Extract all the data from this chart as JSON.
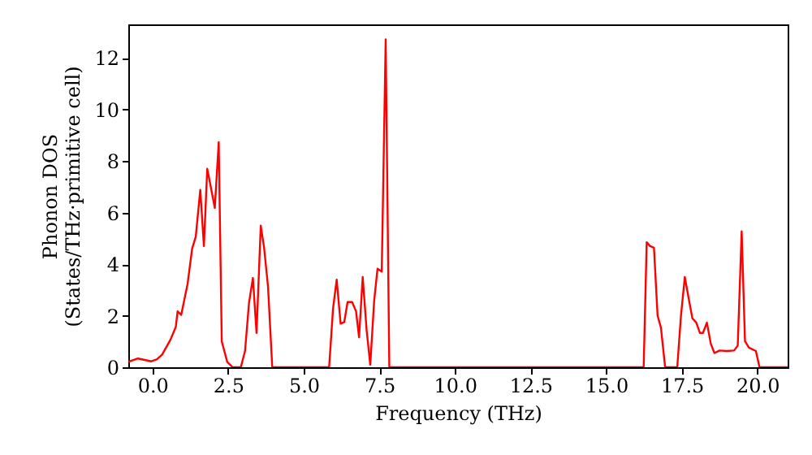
{
  "chart_data": {
    "type": "line",
    "xlabel": "Frequency (THz)",
    "ylabel": "Phonon DOS\n(States/THz·primitive cell)",
    "x": [
      -0.8,
      -0.48,
      -0.04,
      0.14,
      0.32,
      0.59,
      0.77,
      0.83,
      0.95,
      1.16,
      1.31,
      1.43,
      1.58,
      1.7,
      1.81,
      1.94,
      2.06,
      2.19,
      2.29,
      2.47,
      2.65,
      2.92,
      3.06,
      3.19,
      3.32,
      3.44,
      3.58,
      3.69,
      3.82,
      3.96,
      5.84,
      5.97,
      6.09,
      6.22,
      6.34,
      6.45,
      6.6,
      6.73,
      6.83,
      6.95,
      7.08,
      7.2,
      7.33,
      7.44,
      7.58,
      7.71,
      7.83,
      16.24,
      16.34,
      16.45,
      16.58,
      16.7,
      16.81,
      16.95,
      17.35,
      17.47,
      17.6,
      17.73,
      17.85,
      17.98,
      18.1,
      18.2,
      18.33,
      18.46,
      18.58,
      18.75,
      18.99,
      19.23,
      19.35,
      19.48,
      19.59,
      19.72,
      19.95,
      20.07,
      21.0
    ],
    "series": [
      {
        "color": "#ff0000",
        "values": [
          0.21,
          0.34,
          0.23,
          0.3,
          0.49,
          1.06,
          1.56,
          2.17,
          2.03,
          3.23,
          4.6,
          5.06,
          6.88,
          4.7,
          7.7,
          6.92,
          6.18,
          8.73,
          1.01,
          0.21,
          0,
          0,
          0.63,
          2.49,
          3.46,
          1.33,
          5.49,
          4.64,
          3.12,
          0,
          0,
          2.28,
          3.4,
          1.69,
          1.75,
          2.53,
          2.53,
          2.17,
          1.16,
          3.5,
          1.44,
          0.1,
          2.59,
          3.82,
          3.71,
          12.72,
          0,
          0,
          4.85,
          4.7,
          4.64,
          2.0,
          1.54,
          0,
          0,
          1.96,
          3.5,
          2.66,
          1.9,
          1.73,
          1.33,
          1.33,
          1.73,
          0.91,
          0.55,
          0.65,
          0.63,
          0.65,
          0.84,
          5.27,
          1.01,
          0.76,
          0.63,
          0,
          0
        ]
      }
    ],
    "xlim": [
      -0.8,
      21.0
    ],
    "ylim": [
      0,
      13.3
    ],
    "xticks": [
      {
        "value": 0,
        "label": "0.0"
      },
      {
        "value": 2.5,
        "label": "2.5"
      },
      {
        "value": 5,
        "label": "5.0"
      },
      {
        "value": 7.5,
        "label": "7.5"
      },
      {
        "value": 10,
        "label": "10.0"
      },
      {
        "value": 12.5,
        "label": "12.5"
      },
      {
        "value": 15,
        "label": "15.0"
      },
      {
        "value": 17.5,
        "label": "17.5"
      },
      {
        "value": 20,
        "label": "20.0"
      }
    ],
    "yticks": [
      0,
      2,
      4,
      6,
      8,
      10,
      12
    ],
    "line_style": "solid"
  }
}
